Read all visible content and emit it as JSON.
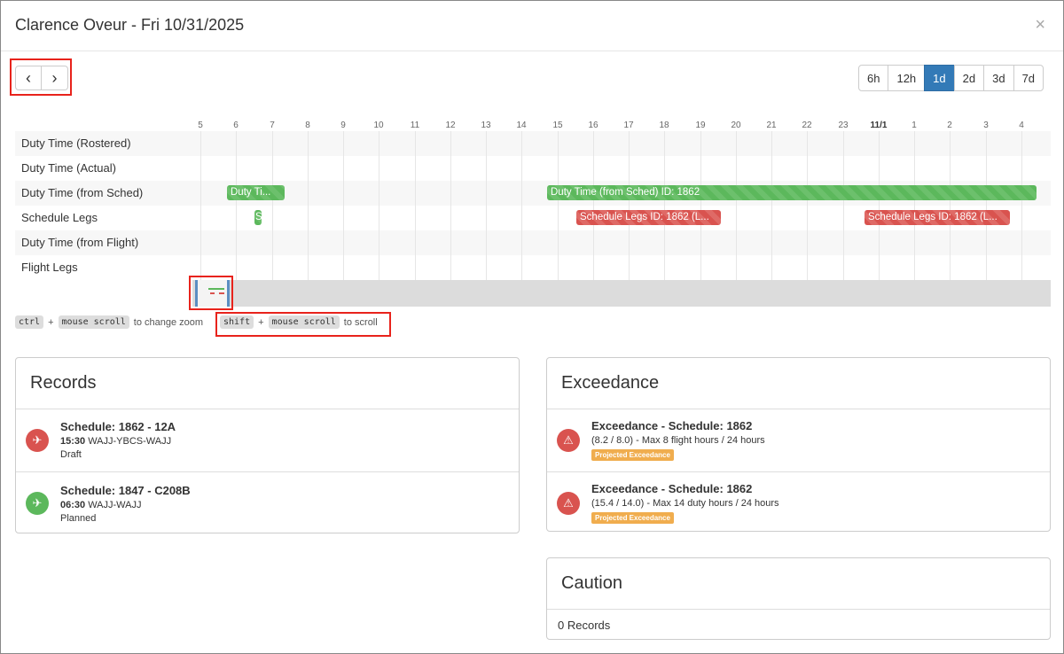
{
  "modal": {
    "title": "Clarence Oveur - Fri 10/31/2025",
    "close": "×"
  },
  "nav": {
    "prev": "‹",
    "next": "›"
  },
  "zoom": {
    "options": [
      "6h",
      "12h",
      "1d",
      "2d",
      "3d",
      "7d"
    ],
    "selected": "1d"
  },
  "timeline": {
    "ticks": [
      "5",
      "6",
      "7",
      "8",
      "9",
      "10",
      "11",
      "12",
      "13",
      "14",
      "15",
      "16",
      "17",
      "18",
      "19",
      "20",
      "21",
      "22",
      "23",
      "11/1",
      "1",
      "2",
      "3",
      "4"
    ],
    "rows": [
      "Duty Time (Rostered)",
      "Duty Time (Actual)",
      "Duty Time (from Sched)",
      "Schedule Legs",
      "Duty Time (from Flight)",
      "Flight Legs"
    ],
    "bars": {
      "duty_sched_1": "Duty Ti...",
      "duty_sched_2": "Duty Time (from Sched) ID: 1862",
      "leg_1": "S",
      "leg_2": "Schedule Legs ID: 1862 (L...",
      "leg_3": "Schedule Legs ID: 1862 (L..."
    }
  },
  "hints": {
    "ctrl": "ctrl",
    "plus": "+",
    "mouse_scroll": "mouse scroll",
    "zoom_text": "to change zoom",
    "shift": "shift",
    "scroll_text": "to scroll"
  },
  "records": {
    "title": "Records",
    "items": [
      {
        "title": "Schedule: 1862 - 12A",
        "time": "15:30",
        "route": "WAJJ-YBCS-WAJJ",
        "status": "Draft",
        "color": "#d9534f"
      },
      {
        "title": "Schedule: 1847 - C208B",
        "time": "06:30",
        "route": "WAJJ-WAJJ",
        "status": "Planned",
        "color": "#5cb85c"
      }
    ]
  },
  "exceedance": {
    "title": "Exceedance",
    "items": [
      {
        "title": "Exceedance - Schedule: 1862",
        "detail": "(8.2 / 8.0) - Max 8 flight hours / 24 hours",
        "badge": "Projected Exceedance"
      },
      {
        "title": "Exceedance - Schedule: 1862",
        "detail": "(15.4 / 14.0) - Max 14 duty hours / 24 hours",
        "badge": "Projected Exceedance"
      }
    ]
  },
  "caution": {
    "title": "Caution",
    "count": "0 Records"
  }
}
